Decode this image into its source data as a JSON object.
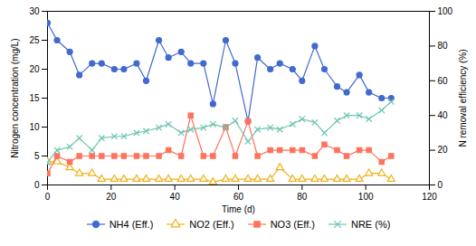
{
  "chart_data": {
    "type": "line",
    "xlabel": "Time (d)",
    "ylabel": "Nitrogen concentration (mg/L)",
    "y2label": "N removal efficiency (%)",
    "x": [
      0,
      3,
      7,
      10,
      14,
      17,
      21,
      24,
      28,
      31,
      35,
      38,
      42,
      45,
      49,
      52,
      56,
      59,
      63,
      66,
      70,
      73,
      77,
      80,
      84,
      87,
      91,
      94,
      98,
      101,
      105,
      108
    ],
    "series": [
      {
        "name": "NH4 (Eff.)",
        "marker": "circle",
        "values": [
          28,
          25,
          23,
          19,
          21,
          21,
          20,
          20,
          21,
          18,
          25,
          22,
          23,
          21,
          21,
          14,
          25,
          21,
          11,
          22,
          20,
          21,
          20,
          18,
          24,
          20,
          17,
          16,
          19,
          16,
          15,
          15
        ]
      },
      {
        "name": "NO2 (Eff.)",
        "marker": "triangle",
        "values": [
          4,
          4,
          3,
          2,
          2,
          1,
          1,
          1,
          1,
          1,
          1,
          1,
          1,
          1,
          1,
          0.5,
          1,
          1,
          1,
          1,
          1,
          3,
          1,
          1,
          1,
          1,
          1,
          1,
          1,
          2,
          2,
          1
        ]
      },
      {
        "name": "NO3 (Eff.)",
        "marker": "square",
        "values": [
          2,
          5,
          4,
          5,
          5,
          5,
          5,
          5,
          5,
          5,
          5,
          6,
          5,
          12,
          5,
          5,
          10,
          5,
          11,
          5,
          6,
          6,
          6,
          6,
          5,
          7,
          6,
          5,
          6,
          6,
          4,
          5
        ]
      },
      {
        "name": "NRE (%)",
        "marker": "x",
        "axis": "y2",
        "values": [
          13,
          20,
          22,
          27,
          20,
          27,
          28,
          28,
          30,
          31,
          33,
          35,
          30,
          32,
          33,
          35,
          33,
          37,
          25,
          32,
          33,
          32,
          35,
          38,
          36,
          30,
          37,
          40,
          40,
          38,
          43,
          48
        ]
      }
    ],
    "xlim": [
      0,
      120
    ],
    "xticks": [
      0,
      20,
      40,
      60,
      80,
      100,
      120
    ],
    "ylim": [
      0,
      30
    ],
    "yticks": [
      0,
      5,
      10,
      15,
      20,
      25,
      30
    ],
    "y2lim": [
      0,
      100
    ],
    "y2ticks": [
      0,
      20,
      40,
      60,
      80,
      100
    ],
    "grid": false,
    "legend": "bottom"
  }
}
